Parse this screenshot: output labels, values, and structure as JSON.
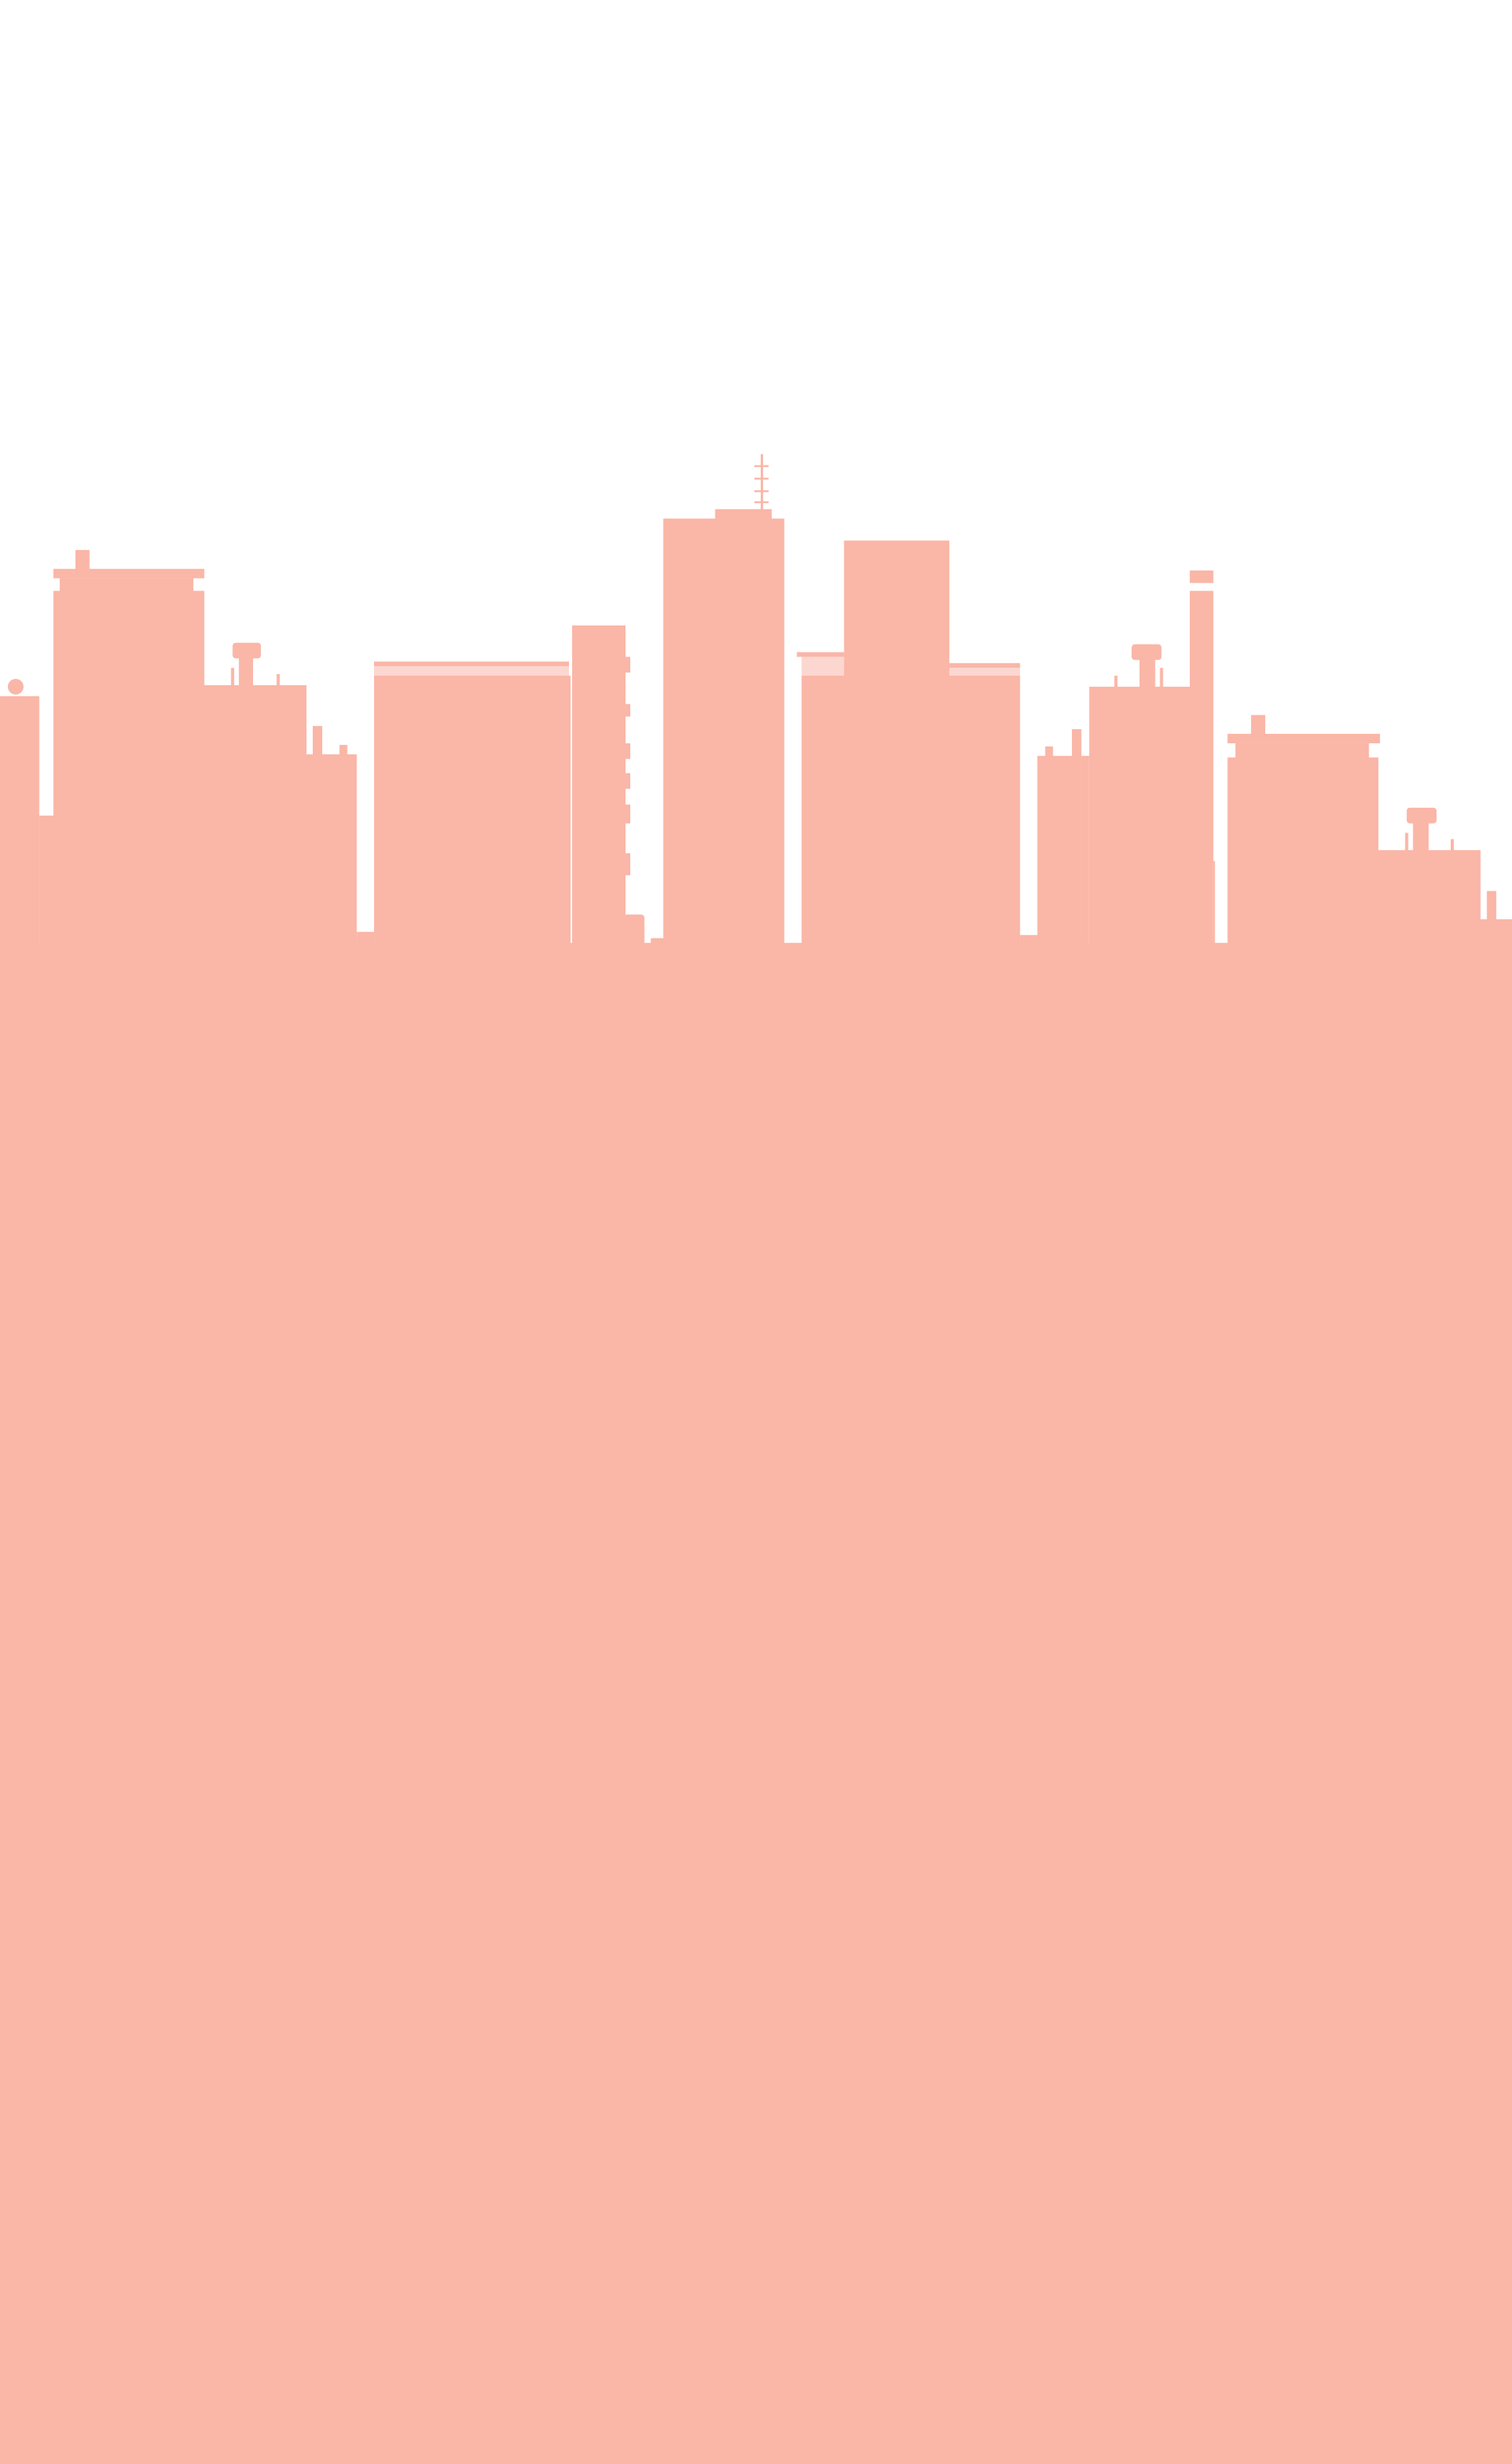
{
  "scene": {
    "subject": "city-skyline-silhouette",
    "colors": {
      "background": "#ffffff",
      "silhouette": "#fab6a7"
    }
  }
}
